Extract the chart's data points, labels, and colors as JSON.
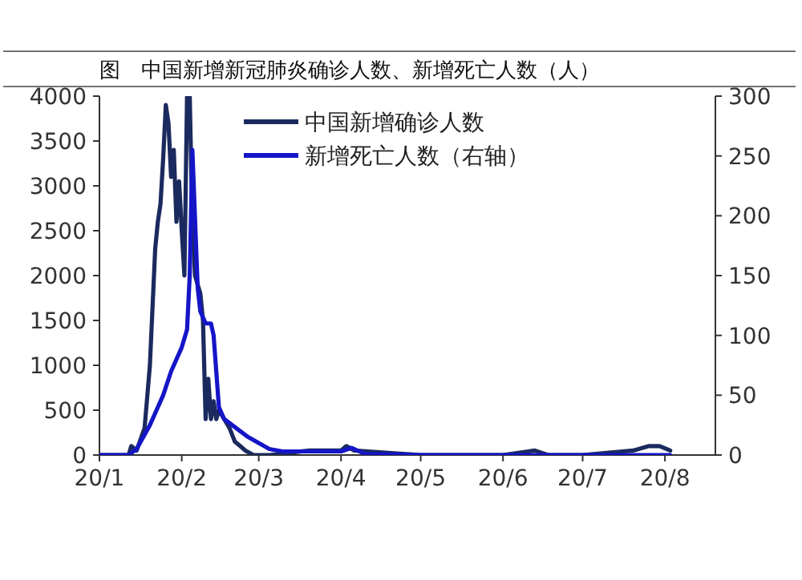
{
  "chart_data": {
    "type": "line",
    "title": "图　中国新增新冠肺炎确诊人数、新增死亡人数（人）",
    "xlim": [
      "--01-01",
      "--08-20"
    ],
    "xticks": [
      {
        "value": "--01-01",
        "label": "20/1"
      },
      {
        "value": "--02-01",
        "label": "20/2"
      },
      {
        "value": "--03-01",
        "label": "20/3"
      },
      {
        "value": "--04-01",
        "label": "20/4"
      },
      {
        "value": "--05-01",
        "label": "20/5"
      },
      {
        "value": "--06-01",
        "label": "20/6"
      },
      {
        "value": "--07-01",
        "label": "20/7"
      },
      {
        "value": "--08-01",
        "label": "20/8"
      }
    ],
    "ylim": [
      0,
      4000
    ],
    "yticks": [
      0,
      500,
      1000,
      1500,
      2000,
      2500,
      3000,
      3500,
      4000
    ],
    "y2lim": [
      0,
      300
    ],
    "y2ticks": [
      0,
      50,
      100,
      150,
      200,
      250,
      300
    ],
    "legend": "top",
    "grid": false,
    "marker": "none",
    "line_style": "solid",
    "series": [
      {
        "name": "中国新增确诊人数",
        "color": "#1b2a5e",
        "x": [
          "--01-01",
          "--01-12",
          "--01-13",
          "--01-15",
          "--01-18",
          "--01-20",
          "--01-22",
          "--01-23",
          "--01-24",
          "--01-25",
          "--01-26",
          "--01-27",
          "--01-28",
          "--01-29",
          "--01-30",
          "--01-31",
          "--02-01",
          "--02-02",
          "--02-03",
          "--02-04",
          "--02-05",
          "--02-06",
          "--02-07",
          "--02-08",
          "--02-09",
          "--02-10",
          "--02-11",
          "--02-12",
          "--02-13",
          "--02-14",
          "--02-15",
          "--02-17",
          "--02-19",
          "--02-21",
          "--02-23",
          "--02-25",
          "--02-28",
          "--03-05",
          "--03-20",
          "--04-01",
          "--04-03",
          "--04-06",
          "--05-01",
          "--06-01",
          "--06-13",
          "--06-18",
          "--07-01",
          "--07-20",
          "--07-26",
          "--07-30",
          "--08-03"
        ],
        "values": [
          0,
          0,
          100,
          50,
          300,
          1000,
          2300,
          2600,
          2800,
          3300,
          3900,
          3700,
          3100,
          3400,
          2600,
          3050,
          2500,
          2000,
          4000,
          4000,
          2600,
          2000,
          1900,
          1800,
          1500,
          400,
          850,
          400,
          600,
          400,
          500,
          400,
          300,
          150,
          100,
          50,
          0,
          0,
          50,
          50,
          100,
          50,
          0,
          0,
          50,
          0,
          0,
          50,
          100,
          100,
          50
        ]
      },
      {
        "name": "新增死亡人数（右轴）",
        "color": "#1515c8",
        "axis": "y2",
        "x": [
          "--01-01",
          "--01-12",
          "--01-15",
          "--01-20",
          "--01-25",
          "--01-28",
          "--02-01",
          "--02-03",
          "--02-04",
          "--02-05",
          "--02-07",
          "--02-08",
          "--02-10",
          "--02-12",
          "--02-13",
          "--02-15",
          "--02-17",
          "--02-20",
          "--02-23",
          "--02-26",
          "--03-01",
          "--03-05",
          "--03-10",
          "--04-01",
          "--04-05",
          "--04-10",
          "--05-01",
          "--08-03"
        ],
        "values": [
          0,
          0,
          5,
          25,
          50,
          70,
          90,
          105,
          150,
          255,
          140,
          120,
          110,
          110,
          100,
          40,
          30,
          25,
          20,
          15,
          10,
          5,
          3,
          3,
          6,
          1,
          0,
          0
        ]
      }
    ]
  }
}
